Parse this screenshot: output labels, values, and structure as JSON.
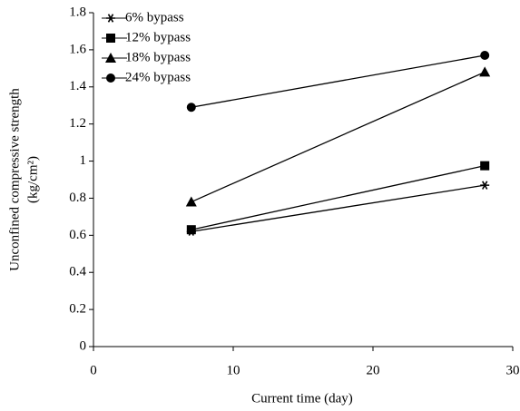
{
  "chart_data": {
    "type": "line",
    "xlabel": "Current time (day)",
    "ylabel": [
      "Unconfined compressive strength",
      "(kg/cm²)"
    ],
    "x": [
      7,
      28
    ],
    "series": [
      {
        "name": "6% bypass",
        "color": "#000000",
        "marker": "star",
        "values": [
          0.62,
          0.87
        ]
      },
      {
        "name": "12% bypass",
        "color": "#000000",
        "marker": "square",
        "values": [
          0.63,
          0.975
        ]
      },
      {
        "name": "18% bypass",
        "color": "#000000",
        "marker": "triangle",
        "values": [
          0.78,
          1.48
        ]
      },
      {
        "name": "24% bypass",
        "color": "#000000",
        "marker": "circle",
        "values": [
          1.29,
          1.57
        ]
      }
    ],
    "xlim": [
      0,
      30
    ],
    "xticks": [
      0,
      10,
      20,
      30
    ],
    "ylim": [
      0,
      1.8
    ],
    "yticks": [
      0,
      0.2,
      0.4,
      0.6,
      0.8,
      1,
      1.2,
      1.4,
      1.6,
      1.8
    ],
    "grid": false,
    "legend": "upper left"
  }
}
